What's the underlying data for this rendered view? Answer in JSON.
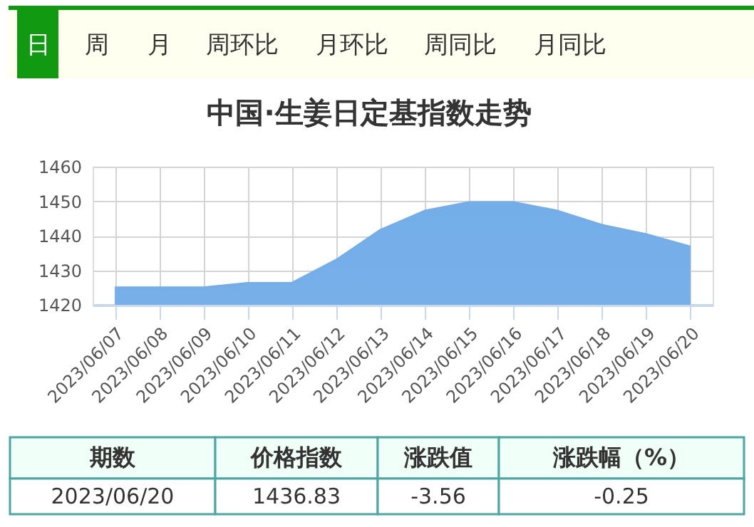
{
  "chart_data": {
    "type": "area",
    "title": "中国·生姜日定基指数走势",
    "categories": [
      "2023/06/07",
      "2023/06/08",
      "2023/06/09",
      "2023/06/10",
      "2023/06/11",
      "2023/06/12",
      "2023/06/13",
      "2023/06/14",
      "2023/06/15",
      "2023/06/16",
      "2023/06/17",
      "2023/06/18",
      "2023/06/19",
      "2023/06/20"
    ],
    "series": [
      {
        "color": "#74aee8",
        "values": [
          1425,
          1425,
          1425,
          1426.3,
          1426.3,
          1433,
          1441.7,
          1447.2,
          1449.7,
          1449.7,
          1447.2,
          1443.1,
          1440.4,
          1436.8
        ]
      }
    ],
    "ylim": [
      1420,
      1460
    ],
    "yticks": [
      1420,
      1430,
      1440,
      1450,
      1460
    ],
    "grid": true,
    "annotations": [
      "日",
      "周",
      "月",
      "周环比",
      "月环比",
      "周同比",
      "月同比",
      "期数",
      "价格指数",
      "涨跌值",
      "涨跌幅（%）",
      "2023/06/20",
      "1436.83",
      "-3.56",
      "-0.25"
    ]
  }
}
